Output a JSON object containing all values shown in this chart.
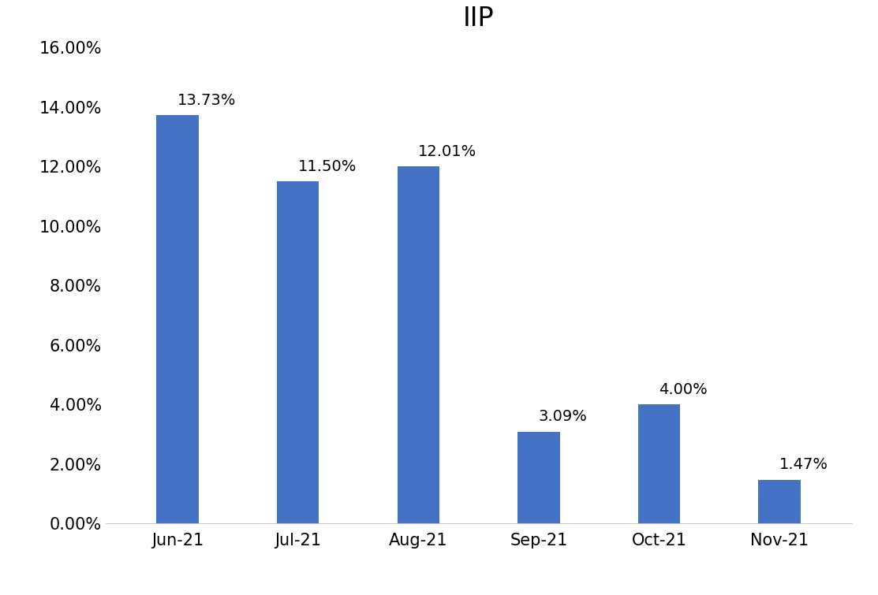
{
  "title": "IIP",
  "categories": [
    "Jun-21",
    "Jul-21",
    "Aug-21",
    "Sep-21",
    "Oct-21",
    "Nov-21"
  ],
  "values": [
    13.73,
    11.5,
    12.01,
    3.09,
    4.0,
    1.47
  ],
  "labels": [
    "13.73%",
    "11.50%",
    "12.01%",
    "3.09%",
    "4.00%",
    "1.47%"
  ],
  "bar_color": "#4472C4",
  "ylim": [
    0,
    16
  ],
  "yticks": [
    0,
    2,
    4,
    6,
    8,
    10,
    12,
    14,
    16
  ],
  "ytick_labels": [
    "0.00%",
    "2.00%",
    "4.00%",
    "6.00%",
    "8.00%",
    "10.00%",
    "12.00%",
    "14.00%",
    "16.00%"
  ],
  "title_fontsize": 24,
  "label_fontsize": 14,
  "tick_fontsize": 15,
  "bar_width": 0.35,
  "background_color": "#ffffff"
}
